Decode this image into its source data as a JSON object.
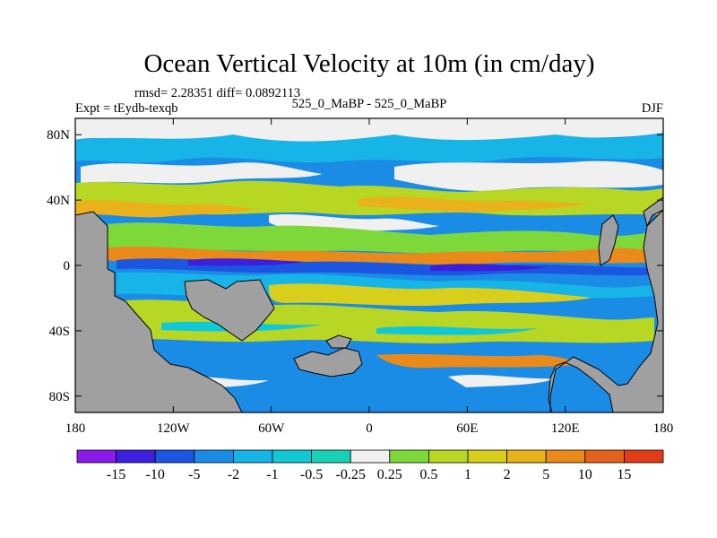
{
  "chart_data": {
    "type": "heatmap",
    "title": "Ocean Vertical Velocity at 10m (in cm/day)",
    "stats_line": "rmsd= 2.28351  diff= 0.0892113",
    "experiment_label": "Expt = tEydb-texqb",
    "comparison_label": "525_0_MaBP - 525_0_MaBP",
    "season_label": "DJF",
    "x_axis": {
      "range": [
        -180,
        180
      ],
      "tick_values": [
        -180,
        -120,
        -60,
        0,
        60,
        120,
        180
      ],
      "tick_labels": [
        "180",
        "120W",
        "60W",
        "0",
        "60E",
        "120E",
        "180"
      ]
    },
    "y_axis": {
      "range": [
        -90,
        90
      ],
      "tick_values": [
        80,
        40,
        0,
        -40,
        -80
      ],
      "tick_labels": [
        "80N",
        "40N",
        "0",
        "40S",
        "80S"
      ]
    },
    "colorbar": {
      "orientation": "horizontal",
      "boundary_labels": [
        "-15",
        "-10",
        "-5",
        "-2",
        "-1",
        "-0.5",
        "-0.25",
        "0.25",
        "0.5",
        "1",
        "2",
        "5",
        "10",
        "15"
      ],
      "colors": [
        "#8b1ae8",
        "#3b1fdc",
        "#1c55e0",
        "#1a8ce6",
        "#17b4e8",
        "#10c8d6",
        "#18d2b8",
        "#f0f0f0",
        "#7fd83a",
        "#b8d624",
        "#d8cf1c",
        "#e9b21c",
        "#ea8a1a",
        "#e5621c",
        "#e03c16"
      ]
    },
    "land_color": "#a0a0a0"
  }
}
